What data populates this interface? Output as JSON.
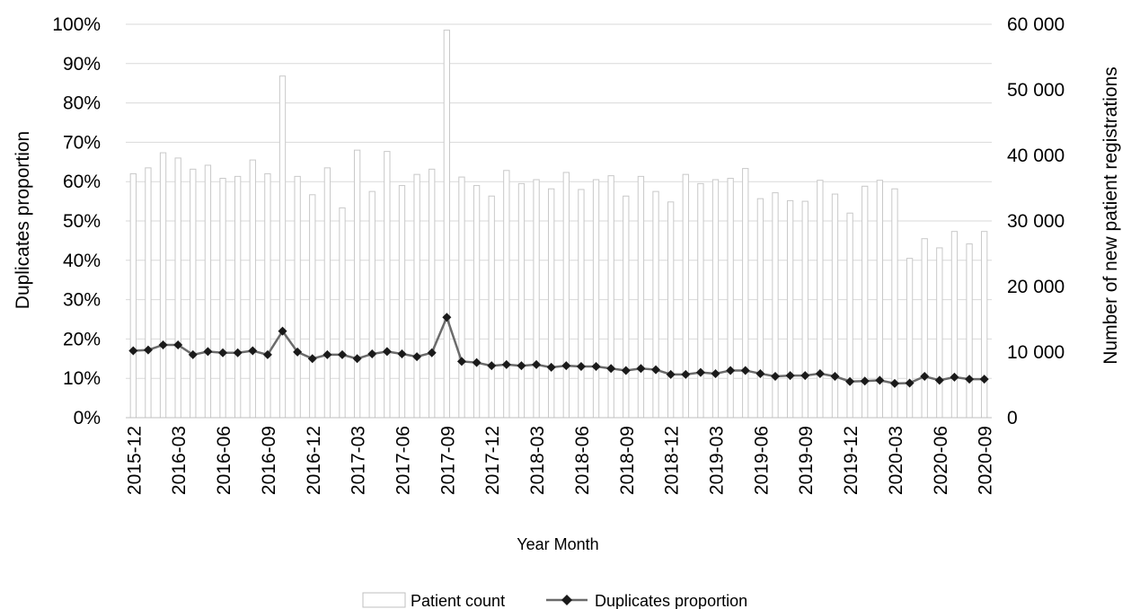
{
  "chart_data": {
    "type": "bar+line",
    "x_label": "Year Month",
    "y_left_label": "Duplicates proportion",
    "y_right_label": "Number of new patient registrations",
    "y_left_ticks": [
      "0%",
      "10%",
      "20%",
      "30%",
      "40%",
      "50%",
      "60%",
      "70%",
      "80%",
      "90%",
      "100%"
    ],
    "y_right_ticks": [
      "0",
      "10 000",
      "20 000",
      "30 000",
      "40 000",
      "50 000",
      "60 000"
    ],
    "y_left_range": [
      0,
      1
    ],
    "y_right_range": [
      0,
      60000
    ],
    "grid": true,
    "legend_position": "bottom",
    "x_tick_labels": [
      "2015-12",
      "2016-03",
      "2016-06",
      "2016-09",
      "2016-12",
      "2017-03",
      "2017-06",
      "2017-09",
      "2017-12",
      "2018-03",
      "2018-06",
      "2018-09",
      "2018-12",
      "2019-03",
      "2019-06",
      "2019-09",
      "2019-12",
      "2020-03",
      "2020-06",
      "2020-09"
    ],
    "categories": [
      "2015-12",
      "2016-01",
      "2016-02",
      "2016-03",
      "2016-04",
      "2016-05",
      "2016-06",
      "2016-07",
      "2016-08",
      "2016-09",
      "2016-10",
      "2016-11",
      "2016-12",
      "2017-01",
      "2017-02",
      "2017-03",
      "2017-04",
      "2017-05",
      "2017-06",
      "2017-07",
      "2017-08",
      "2017-09",
      "2017-10",
      "2017-11",
      "2017-12",
      "2018-01",
      "2018-02",
      "2018-03",
      "2018-04",
      "2018-05",
      "2018-06",
      "2018-07",
      "2018-08",
      "2018-09",
      "2018-10",
      "2018-11",
      "2018-12",
      "2019-01",
      "2019-02",
      "2019-03",
      "2019-04",
      "2019-05",
      "2019-06",
      "2019-07",
      "2019-08",
      "2019-09",
      "2019-10",
      "2019-11",
      "2019-12",
      "2020-01",
      "2020-02",
      "2020-03",
      "2020-04",
      "2020-05",
      "2020-06",
      "2020-07",
      "2020-08",
      "2020-09"
    ],
    "series": [
      {
        "name": "Patient count",
        "type": "bar",
        "axis": "right",
        "color": "#c8c8c8",
        "values": [
          37200,
          38100,
          40400,
          39600,
          37900,
          38500,
          36500,
          36800,
          39300,
          37200,
          52100,
          36800,
          34000,
          38100,
          32000,
          40800,
          34500,
          40600,
          35400,
          37100,
          37900,
          59100,
          36700,
          35400,
          33800,
          37700,
          35700,
          36300,
          34900,
          37400,
          34800,
          36300,
          36900,
          33800,
          36800,
          34500,
          32900,
          37100,
          35700,
          36300,
          36500,
          38000,
          33400,
          34300,
          33100,
          33000,
          36200,
          34100,
          31200,
          35300,
          36200,
          34900,
          24300,
          27300,
          25900,
          28400,
          26500,
          28400
        ]
      },
      {
        "name": "Duplicates proportion",
        "type": "line",
        "axis": "left",
        "color": "#6b6b6b",
        "marker": "diamond",
        "values": [
          0.17,
          0.172,
          0.185,
          0.185,
          0.16,
          0.168,
          0.165,
          0.165,
          0.17,
          0.16,
          0.22,
          0.167,
          0.15,
          0.16,
          0.16,
          0.15,
          0.162,
          0.168,
          0.162,
          0.155,
          0.165,
          0.255,
          0.143,
          0.14,
          0.132,
          0.135,
          0.132,
          0.135,
          0.128,
          0.132,
          0.13,
          0.13,
          0.125,
          0.12,
          0.125,
          0.122,
          0.11,
          0.11,
          0.115,
          0.112,
          0.12,
          0.12,
          0.112,
          0.105,
          0.107,
          0.107,
          0.112,
          0.105,
          0.092,
          0.093,
          0.095,
          0.087,
          0.088,
          0.105,
          0.095,
          0.103,
          0.098,
          0.098
        ]
      }
    ]
  }
}
